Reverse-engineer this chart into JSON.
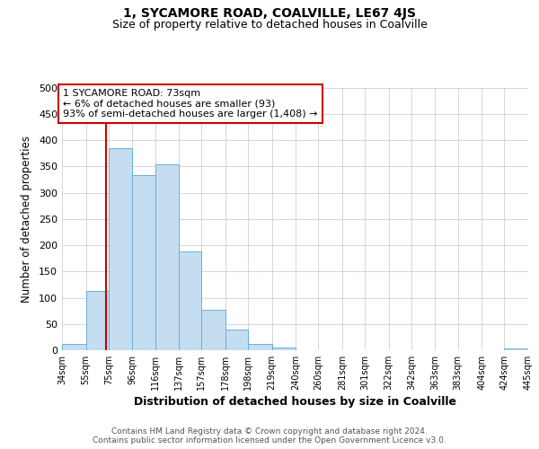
{
  "title": "1, SYCAMORE ROAD, COALVILLE, LE67 4JS",
  "subtitle": "Size of property relative to detached houses in Coalville",
  "xlabel": "Distribution of detached houses by size in Coalville",
  "ylabel": "Number of detached properties",
  "bar_edges": [
    34,
    55,
    75,
    96,
    116,
    137,
    157,
    178,
    198,
    219,
    240,
    260,
    281,
    301,
    322,
    342,
    363,
    383,
    404,
    424,
    445
  ],
  "bar_heights": [
    12,
    113,
    385,
    334,
    354,
    188,
    77,
    39,
    12,
    5,
    0,
    0,
    0,
    0,
    0,
    0,
    0,
    0,
    0,
    3
  ],
  "bar_color": "#c5ddf0",
  "bar_edge_color": "#6aaed6",
  "vline_x": 73,
  "vline_color": "#cc0000",
  "annotation_text": "1 SYCAMORE ROAD: 73sqm\n← 6% of detached houses are smaller (93)\n93% of semi-detached houses are larger (1,408) →",
  "annotation_box_facecolor": "#ffffff",
  "annotation_box_edgecolor": "#cc0000",
  "ylim": [
    0,
    500
  ],
  "xlim": [
    34,
    445
  ],
  "tick_labels": [
    "34sqm",
    "55sqm",
    "75sqm",
    "96sqm",
    "116sqm",
    "137sqm",
    "157sqm",
    "178sqm",
    "198sqm",
    "219sqm",
    "240sqm",
    "260sqm",
    "281sqm",
    "301sqm",
    "322sqm",
    "342sqm",
    "363sqm",
    "383sqm",
    "404sqm",
    "424sqm",
    "445sqm"
  ],
  "footer_line1": "Contains HM Land Registry data © Crown copyright and database right 2024.",
  "footer_line2": "Contains public sector information licensed under the Open Government Licence v3.0.",
  "bg_color": "#ffffff",
  "grid_color": "#d0d0d0",
  "yticks": [
    0,
    50,
    100,
    150,
    200,
    250,
    300,
    350,
    400,
    450,
    500
  ],
  "title_fontsize": 10,
  "subtitle_fontsize": 9,
  "xlabel_fontsize": 9,
  "ylabel_fontsize": 8.5,
  "tick_fontsize": 7,
  "annotation_fontsize": 8,
  "footer_fontsize": 6.5
}
